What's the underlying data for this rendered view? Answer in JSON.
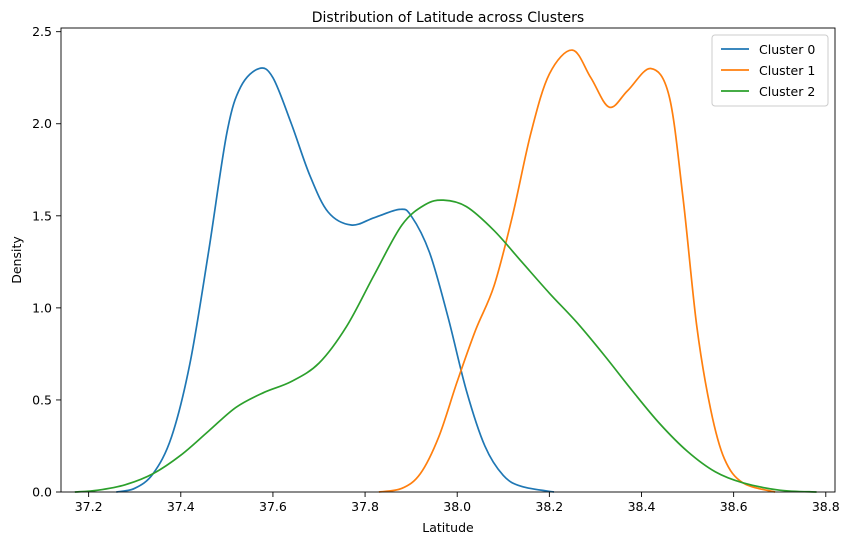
{
  "chart_data": {
    "type": "line",
    "title": "Distribution of Latitude across Clusters",
    "xlabel": "Latitude",
    "ylabel": "Density",
    "xlim": [
      37.14,
      38.82
    ],
    "ylim": [
      0,
      2.52
    ],
    "xticks": [
      "37.2",
      "37.4",
      "37.6",
      "37.8",
      "38.0",
      "38.2",
      "38.4",
      "38.6",
      "38.8"
    ],
    "yticks": [
      "0.0",
      "0.5",
      "1.0",
      "1.5",
      "2.0",
      "2.5"
    ],
    "grid": false,
    "legend_position": "top-right",
    "series": [
      {
        "name": "Cluster 0",
        "color": "#1f77b4",
        "points": [
          [
            37.26,
            0.0
          ],
          [
            37.3,
            0.02
          ],
          [
            37.34,
            0.1
          ],
          [
            37.38,
            0.3
          ],
          [
            37.42,
            0.7
          ],
          [
            37.46,
            1.3
          ],
          [
            37.5,
            1.95
          ],
          [
            37.53,
            2.2
          ],
          [
            37.57,
            2.3
          ],
          [
            37.6,
            2.25
          ],
          [
            37.64,
            2.0
          ],
          [
            37.68,
            1.72
          ],
          [
            37.72,
            1.52
          ],
          [
            37.77,
            1.45
          ],
          [
            37.82,
            1.49
          ],
          [
            37.875,
            1.535
          ],
          [
            37.9,
            1.5
          ],
          [
            37.94,
            1.3
          ],
          [
            37.98,
            0.95
          ],
          [
            38.02,
            0.55
          ],
          [
            38.06,
            0.25
          ],
          [
            38.1,
            0.09
          ],
          [
            38.14,
            0.03
          ],
          [
            38.21,
            0.0
          ]
        ]
      },
      {
        "name": "Cluster 1",
        "color": "#ff7f0e",
        "points": [
          [
            37.83,
            0.0
          ],
          [
            37.88,
            0.02
          ],
          [
            37.92,
            0.1
          ],
          [
            37.96,
            0.3
          ],
          [
            38.0,
            0.6
          ],
          [
            38.04,
            0.88
          ],
          [
            38.08,
            1.12
          ],
          [
            38.12,
            1.5
          ],
          [
            38.16,
            1.95
          ],
          [
            38.2,
            2.27
          ],
          [
            38.25,
            2.4
          ],
          [
            38.29,
            2.25
          ],
          [
            38.33,
            2.09
          ],
          [
            38.37,
            2.18
          ],
          [
            38.42,
            2.3
          ],
          [
            38.46,
            2.15
          ],
          [
            38.49,
            1.6
          ],
          [
            38.52,
            0.9
          ],
          [
            38.55,
            0.45
          ],
          [
            38.58,
            0.18
          ],
          [
            38.62,
            0.05
          ],
          [
            38.69,
            0.0
          ]
        ]
      },
      {
        "name": "Cluster 2",
        "color": "#2ca02c",
        "points": [
          [
            37.17,
            0.0
          ],
          [
            37.22,
            0.01
          ],
          [
            37.28,
            0.04
          ],
          [
            37.34,
            0.1
          ],
          [
            37.4,
            0.2
          ],
          [
            37.46,
            0.33
          ],
          [
            37.52,
            0.46
          ],
          [
            37.58,
            0.54
          ],
          [
            37.64,
            0.6
          ],
          [
            37.7,
            0.7
          ],
          [
            37.76,
            0.9
          ],
          [
            37.82,
            1.18
          ],
          [
            37.88,
            1.45
          ],
          [
            37.93,
            1.56
          ],
          [
            37.97,
            1.585
          ],
          [
            38.02,
            1.55
          ],
          [
            38.08,
            1.42
          ],
          [
            38.14,
            1.25
          ],
          [
            38.2,
            1.08
          ],
          [
            38.26,
            0.92
          ],
          [
            38.32,
            0.74
          ],
          [
            38.38,
            0.55
          ],
          [
            38.44,
            0.37
          ],
          [
            38.5,
            0.22
          ],
          [
            38.56,
            0.11
          ],
          [
            38.62,
            0.05
          ],
          [
            38.7,
            0.01
          ],
          [
            38.78,
            0.0
          ]
        ]
      }
    ]
  }
}
